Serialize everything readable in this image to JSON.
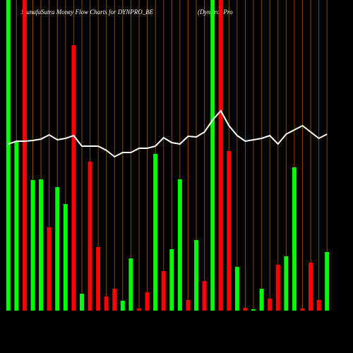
{
  "chart_data": {
    "type": "bar",
    "title": "MunafaSutra  Money Flow  Charts for DYNPRO_BE",
    "subtitle": "(DynPro) Pro",
    "ylim": [
      0,
      440
    ],
    "grid": true,
    "grid_color": "#8a4a00",
    "line_color": "#ffffff",
    "series": [
      {
        "name": "money flow",
        "values": [
          440,
          240,
          440,
          185,
          186,
          118,
          175,
          151,
          376,
          24,
          211,
          90,
          20,
          31,
          14,
          74,
          3,
          26,
          222,
          56,
          87,
          186,
          15,
          100,
          42,
          440,
          440,
          226,
          62,
          4,
          2,
          31,
          17,
          65,
          77,
          203,
          3,
          68,
          15,
          83
        ],
        "colors": [
          "#00ff00",
          "#00ff00",
          "#ff0000",
          "#00ff00",
          "#00ff00",
          "#ff0000",
          "#00ff00",
          "#00ff00",
          "#ff0000",
          "#00ff00",
          "#ff0000",
          "#ff0000",
          "#ff0000",
          "#ff0000",
          "#00ff00",
          "#00ff00",
          "#ff0000",
          "#ff0000",
          "#00ff00",
          "#ff0000",
          "#00ff00",
          "#00ff00",
          "#ff0000",
          "#00ff00",
          "#ff0000",
          "#00ff00",
          "#ff0000",
          "#ff0000",
          "#00ff00",
          "#ff0000",
          "#00ff00",
          "#00ff00",
          "#ff0000",
          "#ff0000",
          "#00ff00",
          "#00ff00",
          "#ff0000",
          "#ff0000",
          "#ff0000",
          "#00ff00"
        ]
      },
      {
        "name": "price",
        "values": [
          236,
          240,
          240,
          241,
          243,
          249,
          242,
          244,
          248,
          233,
          233,
          233,
          227,
          218,
          224,
          224,
          230,
          230,
          233,
          245,
          238,
          236,
          247,
          246,
          253,
          270,
          283,
          262,
          248,
          240,
          242,
          244,
          248,
          236,
          250,
          256,
          262,
          253,
          244,
          250
        ]
      }
    ]
  }
}
